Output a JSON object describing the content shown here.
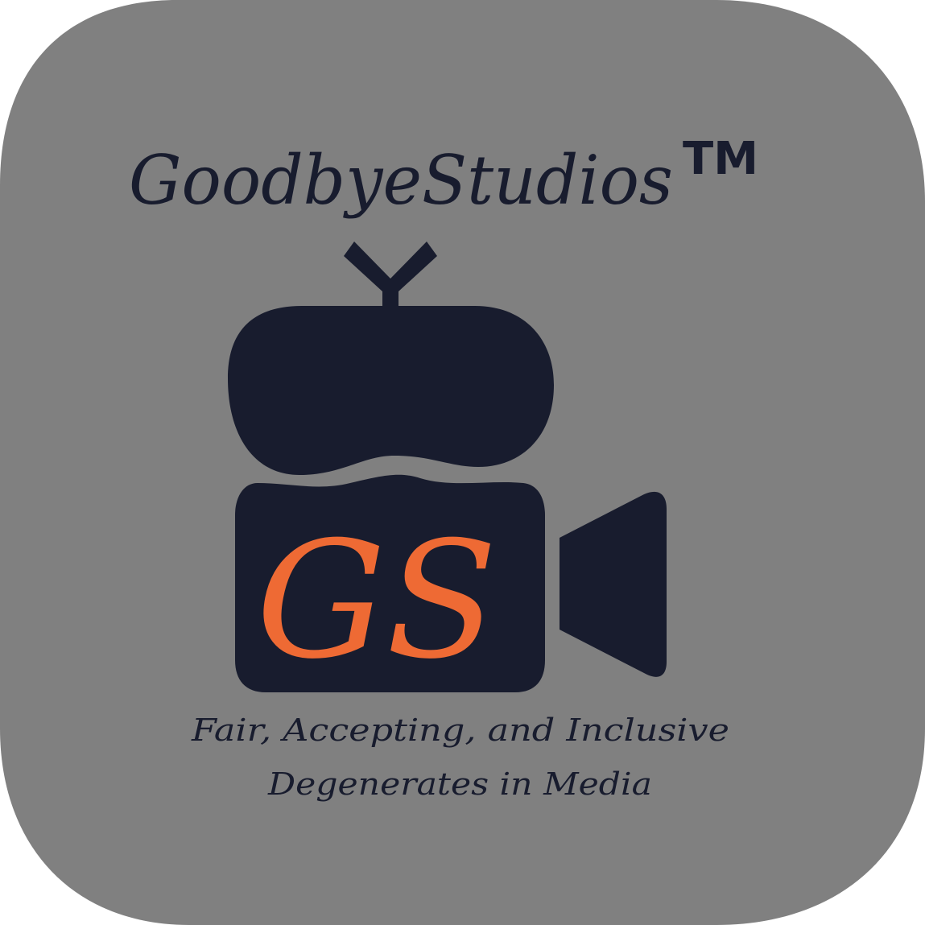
{
  "brand": {
    "name": "GoodbyeStudios",
    "trademark": "TM",
    "monogram": "GS",
    "tagline_line1": "Fair, Accepting, and Inclusive",
    "tagline_line2": "Degenerates in Media"
  },
  "icon": {
    "semantic": "retro-tv-video-camera-icon"
  },
  "colors": {
    "background": "#808080",
    "foreground": "#181c2e",
    "accent": "#ee6a34",
    "page": "#ffffff"
  }
}
